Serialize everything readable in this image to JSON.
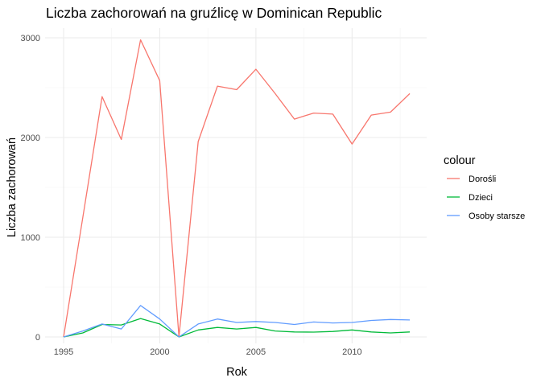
{
  "chart_data": {
    "type": "line",
    "title": "Liczba zachorowań na gruźlicę w Dominican Republic",
    "xlabel": "Rok",
    "ylabel": "Liczba zachorowań",
    "xlim": [
      1995,
      2013
    ],
    "ylim": [
      0,
      3000
    ],
    "x_ticks": [
      1995,
      2000,
      2005,
      2010
    ],
    "y_ticks": [
      0,
      1000,
      2000,
      3000
    ],
    "grid": true,
    "legend_position": "right",
    "legend_title": "colour",
    "x": [
      1995,
      1996,
      1997,
      1998,
      1999,
      2000,
      2001,
      2002,
      2003,
      2004,
      2005,
      2006,
      2007,
      2008,
      2009,
      2010,
      2011,
      2012,
      2013
    ],
    "series": [
      {
        "name": "Dorośli",
        "color": "#F8766D",
        "values": [
          0,
          1200,
          2410,
          1980,
          2980,
          2570,
          0,
          1960,
          2515,
          2480,
          2685,
          2440,
          2185,
          2245,
          2235,
          1935,
          2225,
          2255,
          2440
        ]
      },
      {
        "name": "Dzieci",
        "color": "#00BA38",
        "values": [
          0,
          40,
          125,
          120,
          185,
          130,
          0,
          70,
          95,
          80,
          95,
          60,
          50,
          48,
          55,
          70,
          50,
          40,
          50
        ]
      },
      {
        "name": "Osoby starsze",
        "color": "#619CFF",
        "values": [
          0,
          60,
          130,
          80,
          315,
          180,
          0,
          130,
          180,
          145,
          155,
          145,
          125,
          150,
          140,
          145,
          165,
          175,
          170
        ]
      }
    ]
  }
}
